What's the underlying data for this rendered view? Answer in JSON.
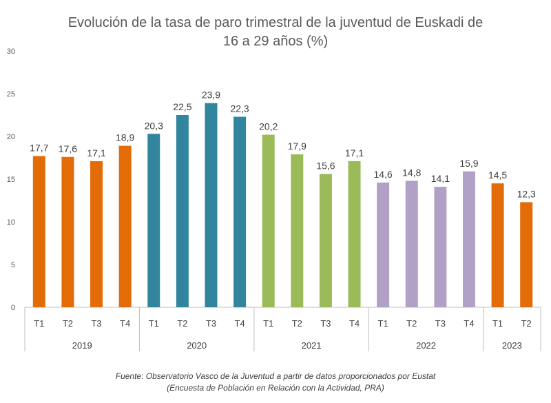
{
  "title_line1": "Evolución de la tasa de paro trimestral de la juventud de Euskadi de",
  "title_line2": "16 a 29 años (%)",
  "source_line1": "Fuente: Observatorio Vasco de la Juventud a partir de datos proporcionados por Eustat",
  "source_line2": "(Encuesta de Población en Relación con la Actividad, PRA)",
  "colors": {
    "2019": "#E36C09",
    "2020": "#31859C",
    "2021": "#9BBB59",
    "2022": "#B2A1C7",
    "2023": "#E36C09"
  },
  "chart_data": {
    "type": "bar",
    "title": "Evolución de la tasa de paro trimestral de la juventud de Euskadi de 16 a 29 años (%)",
    "ylim": [
      0,
      30
    ],
    "yticks": [
      0,
      5,
      10,
      15,
      20,
      25,
      30
    ],
    "grid": false,
    "groups": [
      {
        "year": "2019",
        "quarters": [
          "T1",
          "T2",
          "T3",
          "T4"
        ],
        "values": [
          17.7,
          17.6,
          17.1,
          18.9
        ],
        "labels": [
          "17,7",
          "17,6",
          "17,1",
          "18,9"
        ]
      },
      {
        "year": "2020",
        "quarters": [
          "T1",
          "T2",
          "T3",
          "T4"
        ],
        "values": [
          20.3,
          22.5,
          23.9,
          22.3
        ],
        "labels": [
          "20,3",
          "22,5",
          "23,9",
          "22,3"
        ]
      },
      {
        "year": "2021",
        "quarters": [
          "T1",
          "T2",
          "T3",
          "T4"
        ],
        "values": [
          20.2,
          17.9,
          15.6,
          17.1
        ],
        "labels": [
          "20,2",
          "17,9",
          "15,6",
          "17,1"
        ]
      },
      {
        "year": "2022",
        "quarters": [
          "T1",
          "T2",
          "T3",
          "T4"
        ],
        "values": [
          14.6,
          14.8,
          14.1,
          15.9
        ],
        "labels": [
          "14,6",
          "14,8",
          "14,1",
          "15,9"
        ]
      },
      {
        "year": "2023",
        "quarters": [
          "T1",
          "T2"
        ],
        "values": [
          14.5,
          12.3
        ],
        "labels": [
          "14,5",
          "12,3"
        ]
      }
    ]
  }
}
